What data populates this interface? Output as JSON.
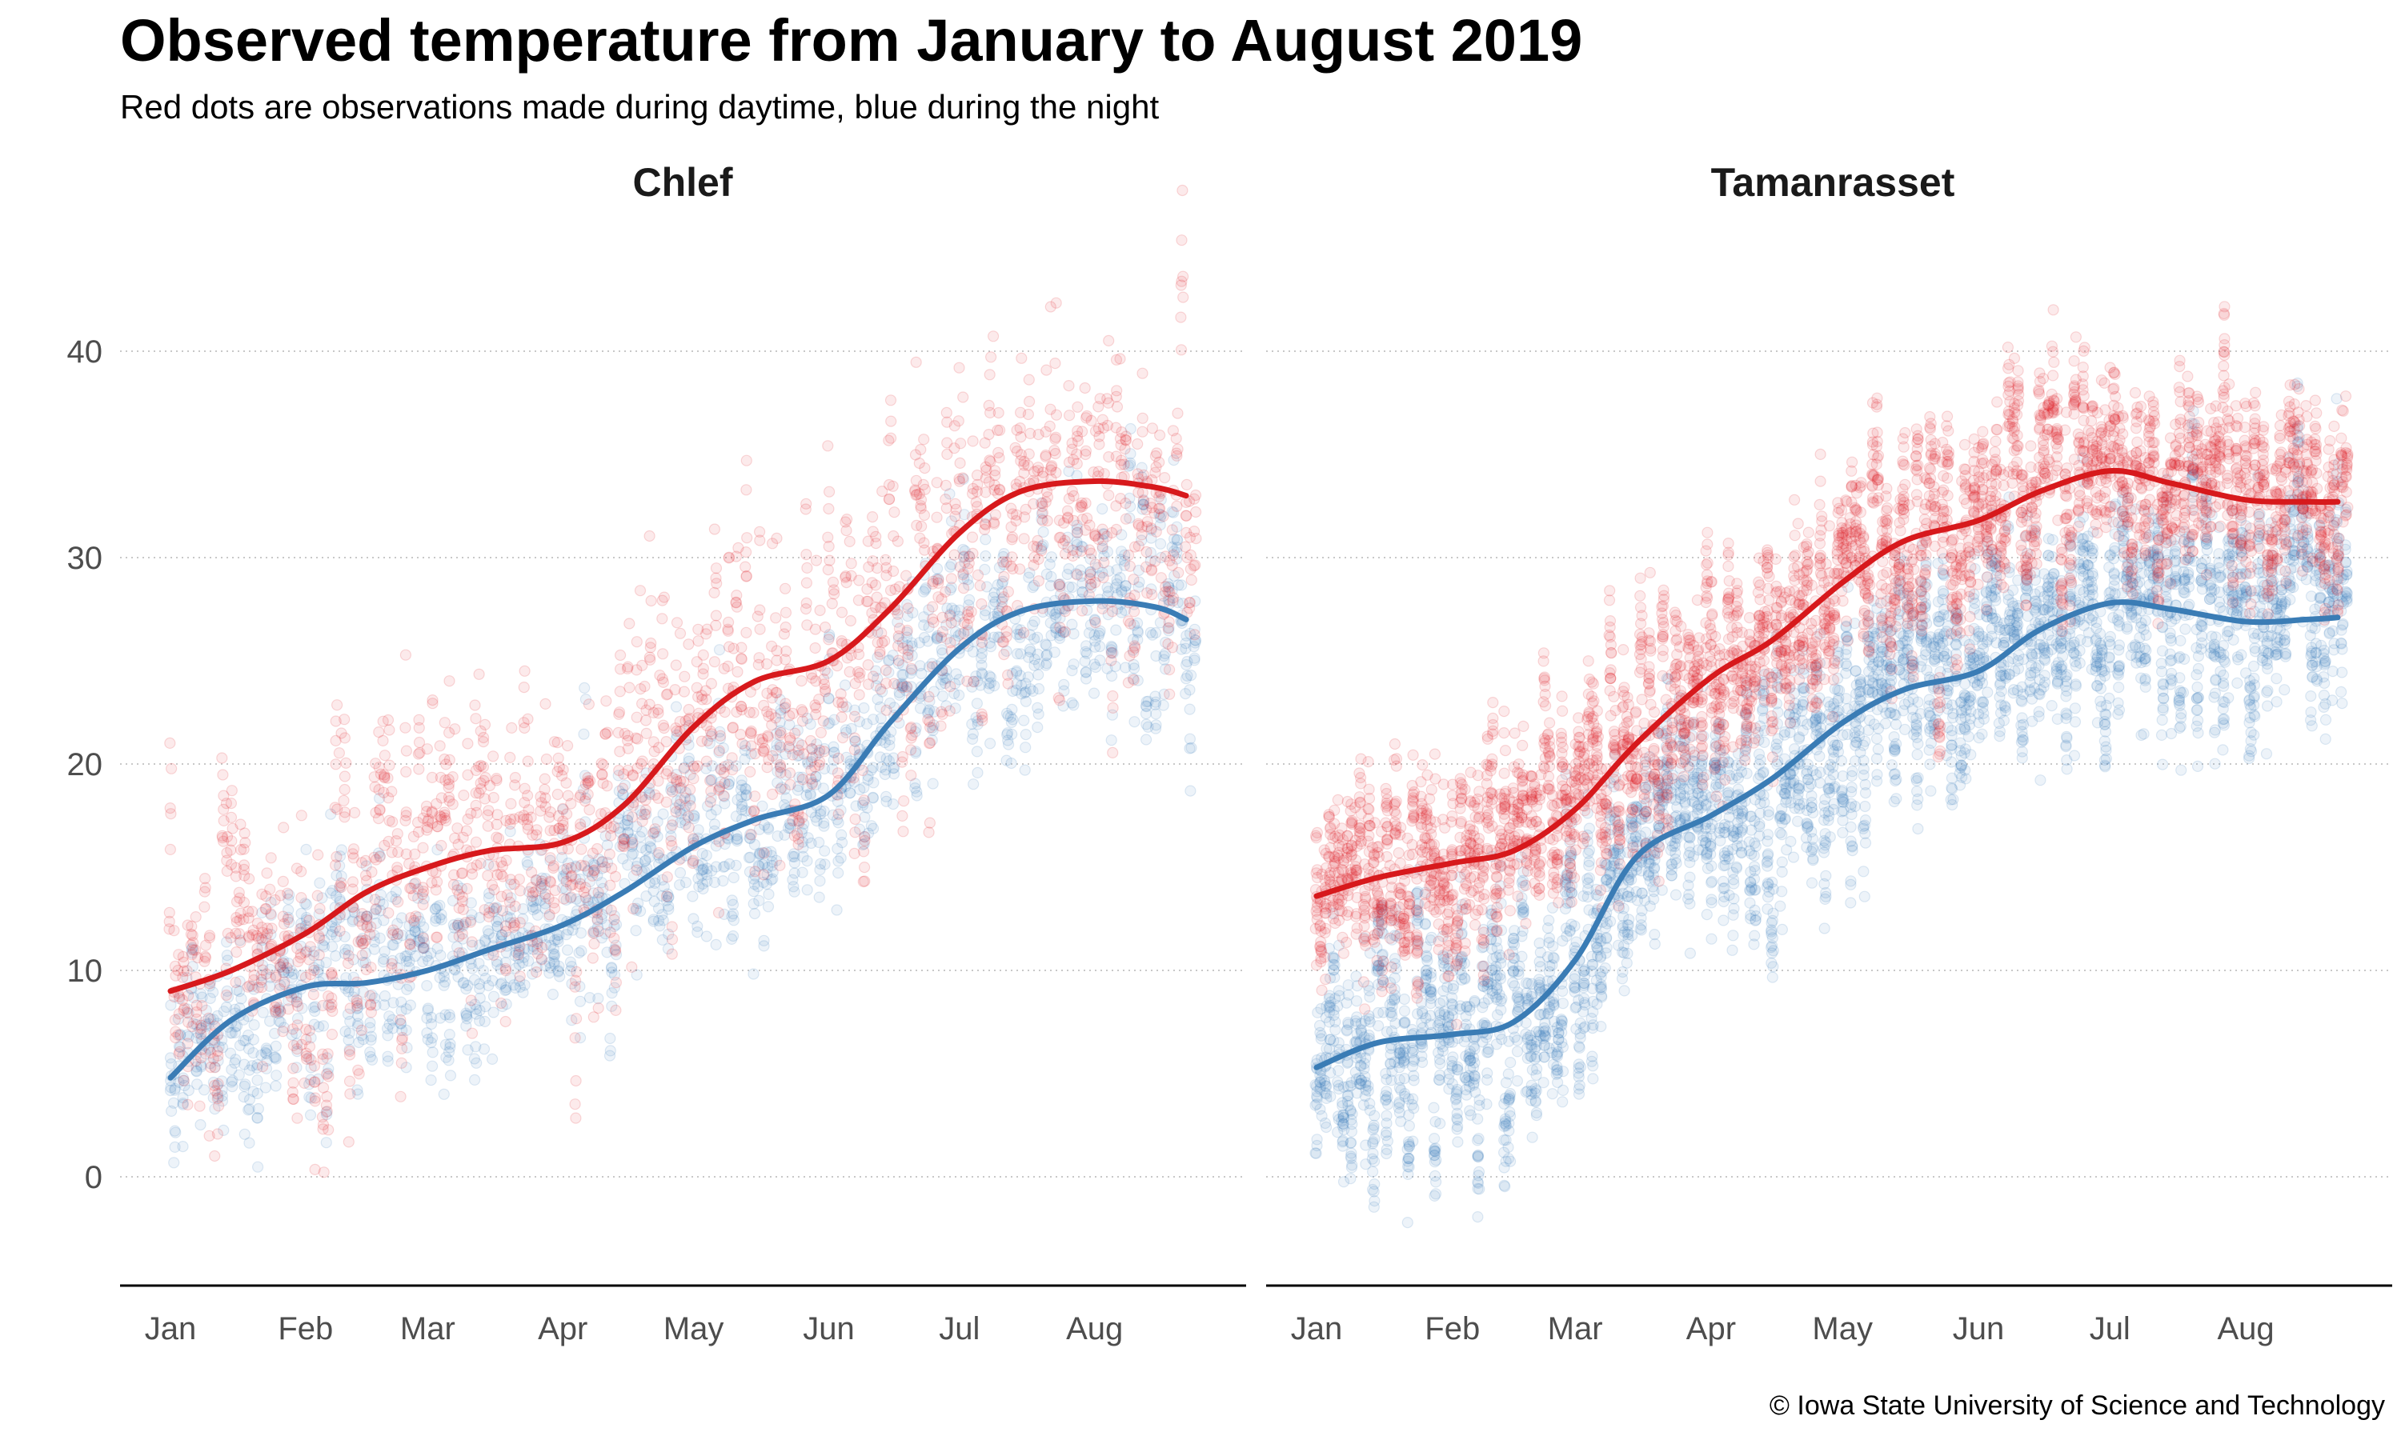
{
  "title": "Observed temperature from January to August 2019",
  "subtitle": "Red dots are observations made during daytime, blue during the night",
  "caption": "© Iowa State University of Science and Technology",
  "chart_data": {
    "type": "scatter",
    "facets": [
      "Chlef",
      "Tamanrasset"
    ],
    "x_ticks": [
      "Jan",
      "Feb",
      "Mar",
      "Apr",
      "May",
      "Jun",
      "Jul",
      "Aug"
    ],
    "y_ticks": [
      0,
      10,
      20,
      30,
      40
    ],
    "ylim": [
      -5,
      45
    ],
    "xlim": [
      "2019-01-01",
      "2019-08-24"
    ],
    "grid": "horizontal dotted",
    "colors": {
      "day": "#e31a1c",
      "night": "#377eb8",
      "day_line": "#d7191c",
      "night_line": "#3a7cb5"
    },
    "smooth_lines": {
      "x": [
        "2019-01-01",
        "2019-01-15",
        "2019-02-01",
        "2019-02-15",
        "2019-03-01",
        "2019-03-15",
        "2019-04-01",
        "2019-04-15",
        "2019-05-01",
        "2019-05-15",
        "2019-06-01",
        "2019-06-15",
        "2019-07-01",
        "2019-07-15",
        "2019-08-01",
        "2019-08-15",
        "2019-08-22"
      ],
      "series": [
        {
          "facet": "Chlef",
          "period": "day",
          "values": [
            9.0,
            10.0,
            11.8,
            13.8,
            15.0,
            15.8,
            16.2,
            18.0,
            21.8,
            24.0,
            25.0,
            27.5,
            31.2,
            33.2,
            33.7,
            33.4,
            33.0
          ]
        },
        {
          "facet": "Chlef",
          "period": "night",
          "values": [
            4.8,
            7.6,
            9.2,
            9.4,
            10.0,
            11.0,
            12.2,
            13.8,
            16.0,
            17.3,
            18.5,
            22.0,
            25.6,
            27.4,
            27.9,
            27.6,
            27.0
          ]
        },
        {
          "facet": "Tamanrasset",
          "period": "day",
          "values": [
            13.6,
            14.5,
            15.2,
            15.8,
            17.8,
            21.0,
            24.2,
            26.0,
            28.8,
            30.8,
            31.8,
            33.2,
            34.2,
            33.6,
            32.8,
            32.7,
            32.7
          ]
        },
        {
          "facet": "Tamanrasset",
          "period": "night",
          "values": [
            5.3,
            6.5,
            6.9,
            7.5,
            10.5,
            15.5,
            17.5,
            19.3,
            22.0,
            23.6,
            24.5,
            26.5,
            27.8,
            27.5,
            26.9,
            27.0,
            27.1
          ]
        }
      ]
    },
    "scatter_spread": {
      "Chlef": {
        "day": 4.5,
        "night": 3.0
      },
      "Tamanrasset": {
        "day": 2.8,
        "night": 3.2
      }
    },
    "observations_per_day": {
      "Chlef": 8,
      "Tamanrasset": 16
    }
  }
}
